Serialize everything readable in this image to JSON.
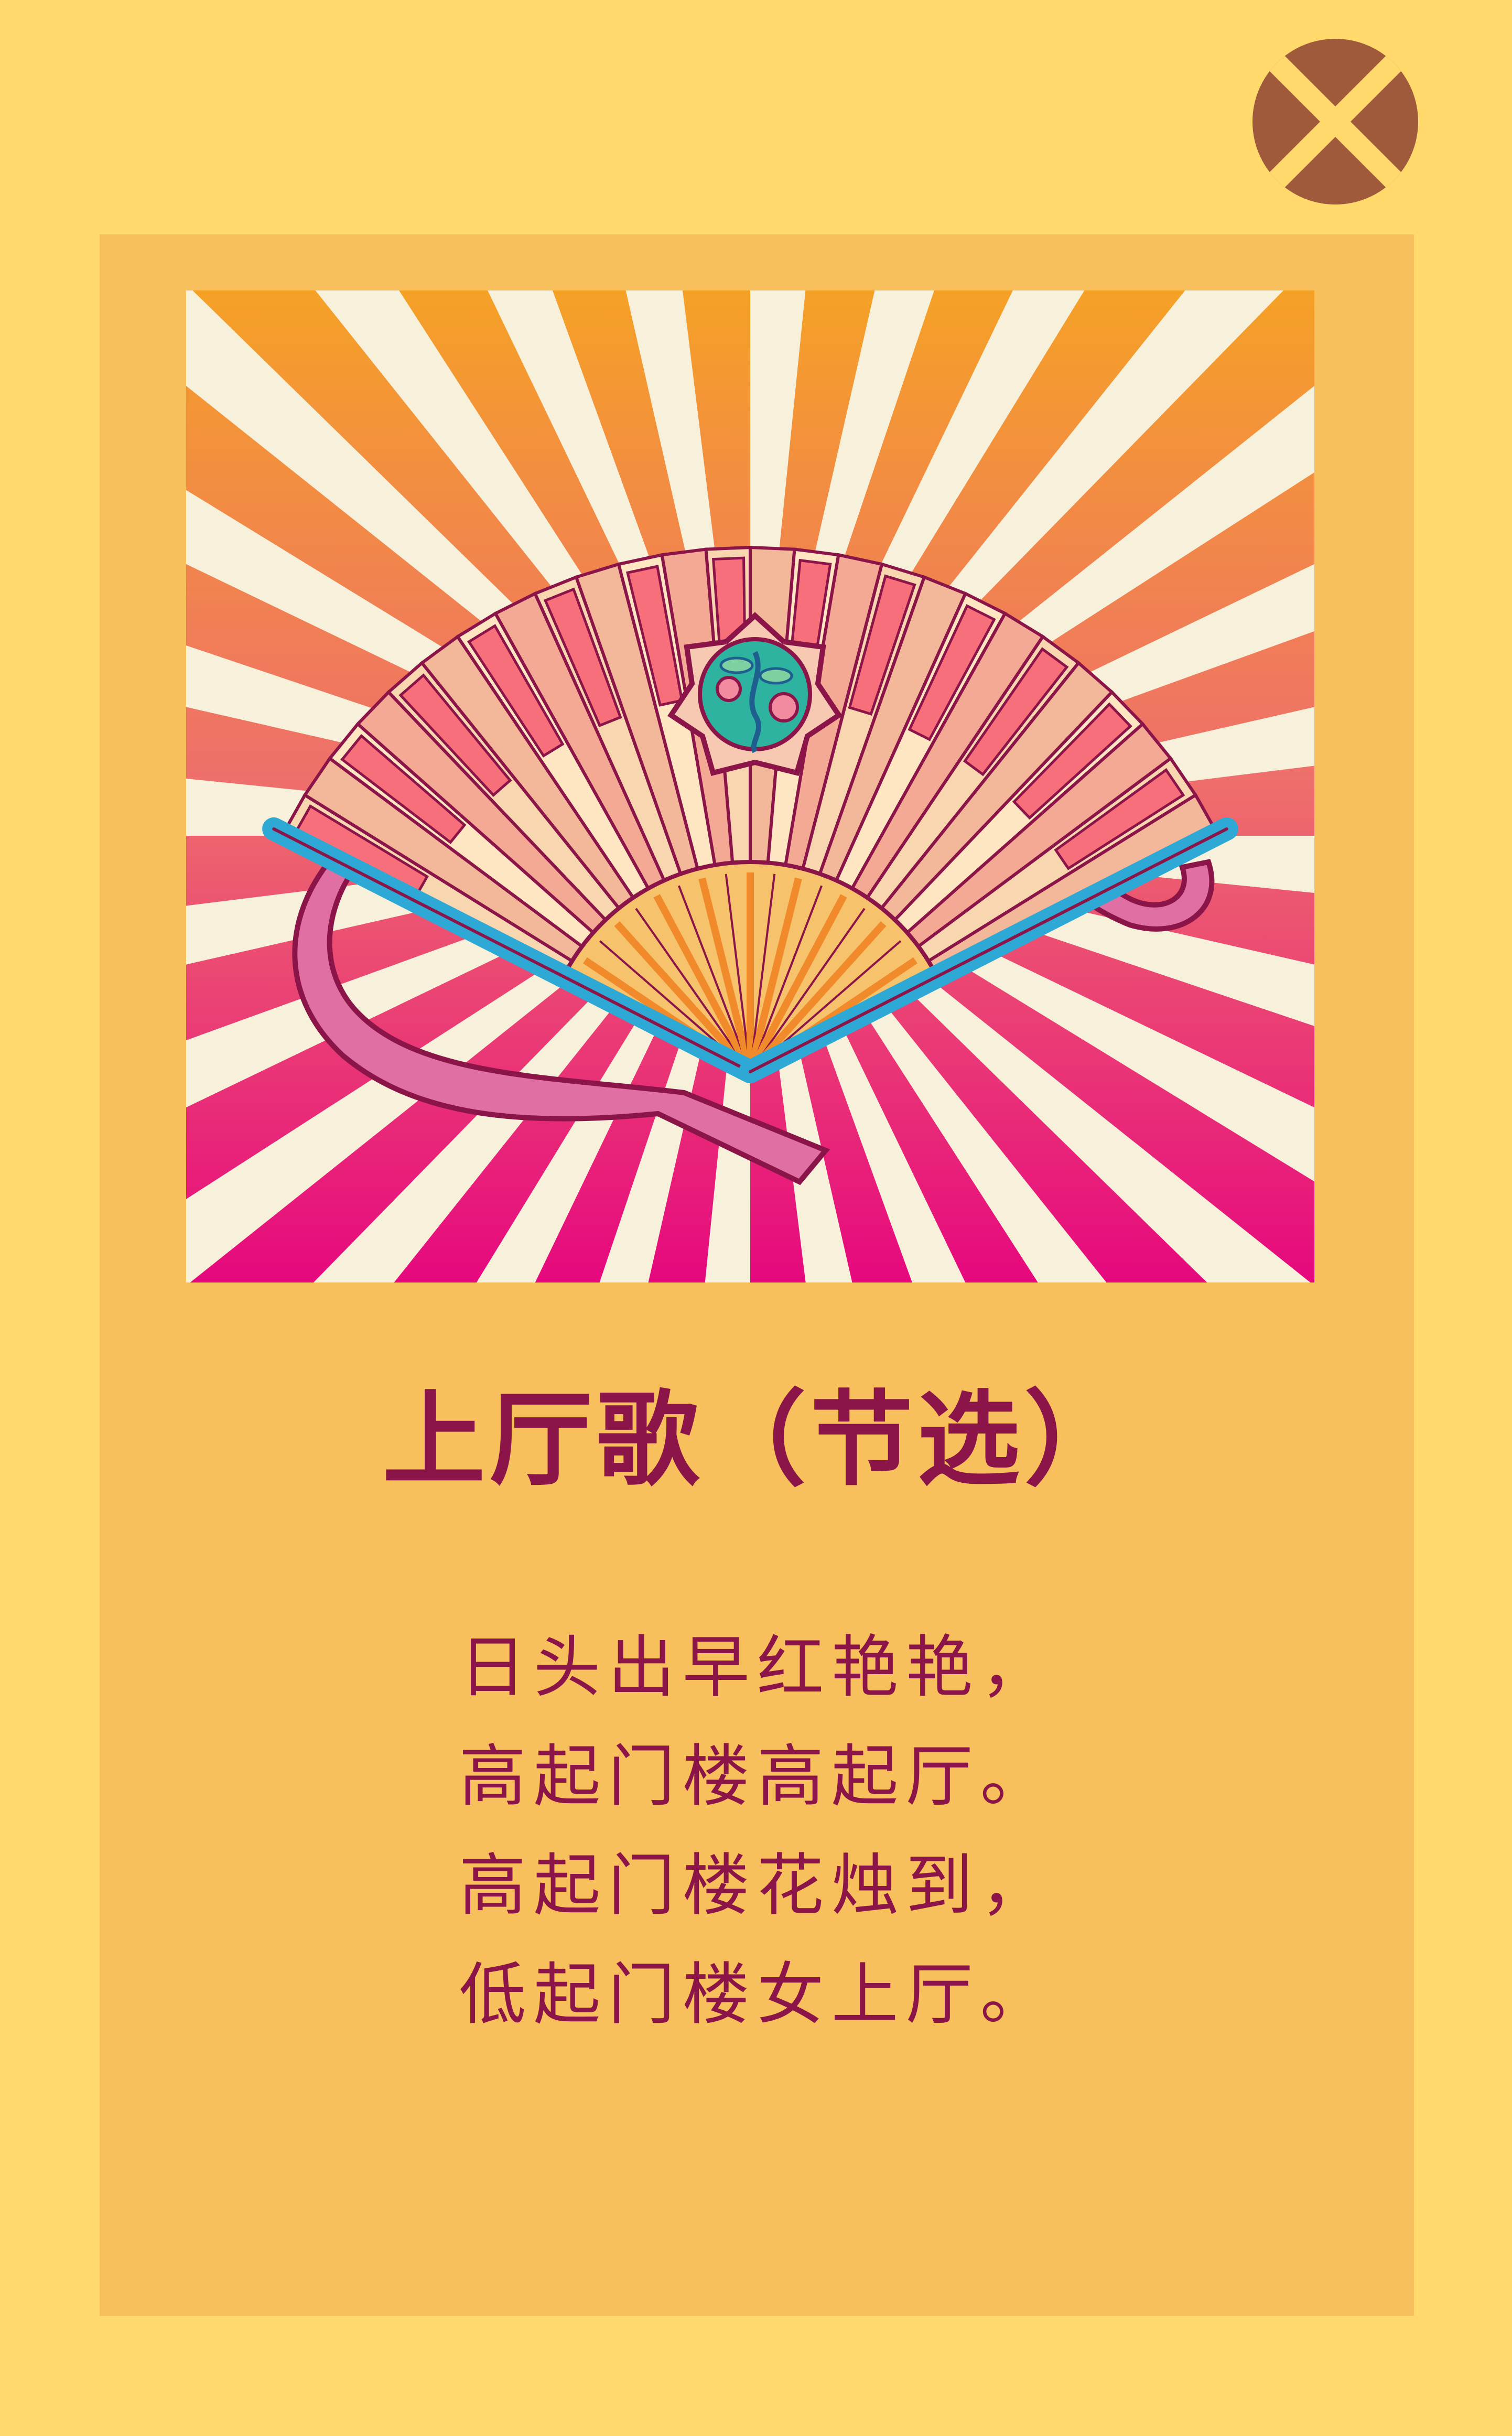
{
  "close_button": {
    "icon": "close-icon",
    "color": "#9E5A3A"
  },
  "artwork": {
    "subject": "fan-illustration-icon"
  },
  "poem": {
    "title": "上厅歌（节选）",
    "lines": [
      "日头出早红艳艳，",
      "高起门楼高起厅。",
      "高起门楼花烛到，",
      "低起门楼女上厅。"
    ]
  },
  "colors": {
    "page_background": "#FFD96C",
    "card_background": "#F8C05C",
    "text": "#8B1548"
  }
}
